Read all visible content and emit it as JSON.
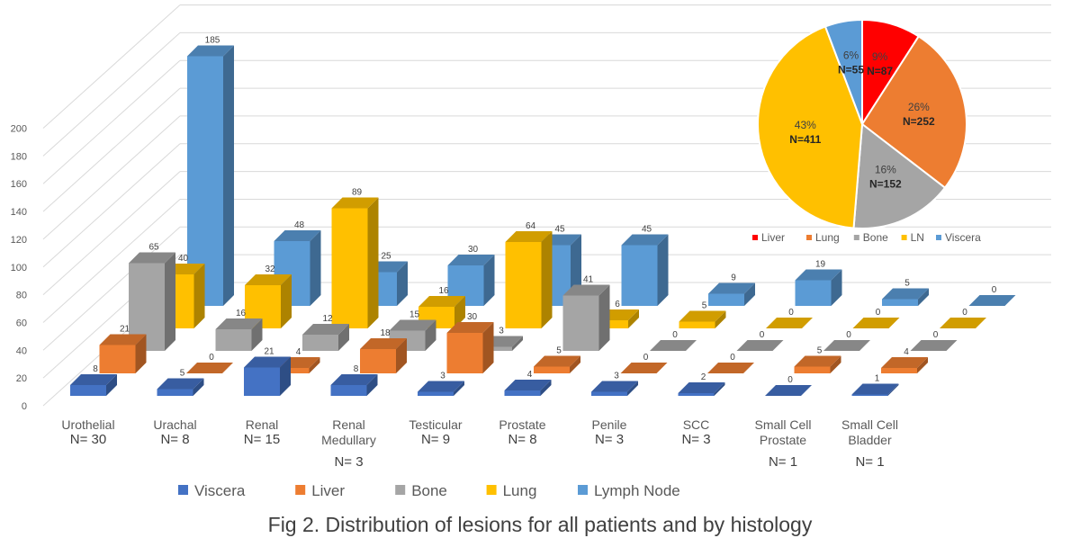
{
  "chart_data": [
    {
      "type": "bar",
      "style": "3d-clustered-depth",
      "title": "",
      "xlabel": "",
      "ylabel": "",
      "ylim": [
        0,
        200
      ],
      "yticks": [
        "0",
        "20",
        "40",
        "60",
        "80",
        "100",
        "120",
        "140",
        "160",
        "180",
        "200"
      ],
      "grid": true,
      "legend_position": "bottom",
      "categories": [
        {
          "label": [
            "Urothelial"
          ],
          "n": [
            "N= 30"
          ]
        },
        {
          "label": [
            "Urachal"
          ],
          "n": [
            "N= 8"
          ]
        },
        {
          "label": [
            "Renal"
          ],
          "n": [
            "N= 15"
          ]
        },
        {
          "label": [
            "Renal",
            "Medullary"
          ],
          "n": [
            "N= 3"
          ]
        },
        {
          "label": [
            "Testicular"
          ],
          "n": [
            "N= 9"
          ]
        },
        {
          "label": [
            "Prostate"
          ],
          "n": [
            "N= 8"
          ]
        },
        {
          "label": [
            "Penile"
          ],
          "n": [
            "N= 3"
          ]
        },
        {
          "label": [
            "SCC"
          ],
          "n": [
            "N= 3"
          ]
        },
        {
          "label": [
            "Small Cell",
            "Prostate"
          ],
          "n": [
            "N= 1"
          ]
        },
        {
          "label": [
            "Small Cell",
            "Bladder"
          ],
          "n": [
            "N= 1"
          ]
        }
      ],
      "series": [
        {
          "name": "Viscera",
          "color": "#4472C4",
          "values": [
            8,
            5,
            21,
            8,
            3,
            4,
            3,
            2,
            0,
            1
          ]
        },
        {
          "name": "Liver",
          "color": "#ED7D31",
          "values": [
            21,
            0,
            4,
            18,
            30,
            5,
            0,
            0,
            5,
            4
          ]
        },
        {
          "name": "Bone",
          "color": "#A5A5A5",
          "values": [
            65,
            16,
            12,
            15,
            3,
            41,
            0,
            0,
            0,
            0
          ]
        },
        {
          "name": "Lung",
          "color": "#FFC000",
          "values": [
            40,
            32,
            89,
            16,
            64,
            6,
            5,
            0,
            0,
            0
          ]
        },
        {
          "name": "Lymph Node",
          "color": "#5B9BD5",
          "values": [
            185,
            48,
            25,
            30,
            45,
            45,
            9,
            19,
            5,
            0
          ]
        }
      ]
    },
    {
      "type": "pie",
      "title": "",
      "legend_position": "bottom",
      "slices": [
        {
          "name": "Liver",
          "value": 87,
          "percent": "9%",
          "n_label": "N=87",
          "color": "#FF0000"
        },
        {
          "name": "Lung",
          "value": 252,
          "percent": "26%",
          "n_label": "N=252",
          "color": "#ED7D31"
        },
        {
          "name": "Bone",
          "value": 152,
          "percent": "16%",
          "n_label": "N=152",
          "color": "#A5A5A5"
        },
        {
          "name": "LN",
          "value": 411,
          "percent": "43%",
          "n_label": "N=411",
          "color": "#FFC000"
        },
        {
          "name": "Viscera",
          "value": 55,
          "percent": "6%",
          "n_label": "N=55",
          "color": "#5B9BD5"
        }
      ]
    }
  ],
  "caption": "Fig 2. Distribution of lesions for all patients and by histology"
}
